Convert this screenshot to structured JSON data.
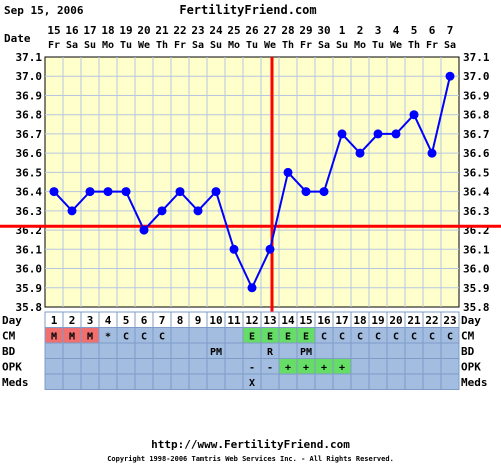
{
  "header": {
    "date_text": "Sep 15, 2006",
    "site": "FertilityFriend.com"
  },
  "colors": {
    "plot_bg": "#ffffcc",
    "grid": "#b6c7e0",
    "line": "#0000ff",
    "coverline": "#ff0000",
    "ovulation": "#ff0000",
    "row_bg": "#a3bde0",
    "menses": "#f07070",
    "egg_white": "#66dd66",
    "opk_positive": "#66dd66"
  },
  "chart_data": {
    "type": "line",
    "dates": [
      "15",
      "16",
      "17",
      "18",
      "19",
      "20",
      "21",
      "22",
      "23",
      "24",
      "25",
      "26",
      "27",
      "28",
      "29",
      "30",
      "1",
      "2",
      "3",
      "4",
      "5",
      "6",
      "7"
    ],
    "weekdays": [
      "Fr",
      "Sa",
      "Su",
      "Mo",
      "Tu",
      "We",
      "Th",
      "Fr",
      "Sa",
      "Su",
      "Mo",
      "Tu",
      "We",
      "Th",
      "Fr",
      "Sa",
      "Su",
      "Mo",
      "Tu",
      "We",
      "Th",
      "Fr",
      "Sa"
    ],
    "days": [
      1,
      2,
      3,
      4,
      5,
      6,
      7,
      8,
      9,
      10,
      11,
      12,
      13,
      14,
      15,
      16,
      17,
      18,
      19,
      20,
      21,
      22,
      23
    ],
    "temps": [
      36.4,
      36.3,
      36.4,
      36.4,
      36.4,
      36.2,
      36.3,
      36.4,
      36.3,
      36.4,
      36.1,
      35.9,
      36.1,
      36.5,
      36.4,
      36.4,
      36.7,
      36.6,
      36.7,
      36.7,
      36.8,
      36.6,
      37.0
    ],
    "y_ticks": [
      "37.1",
      "37.0",
      "36.9",
      "36.8",
      "36.7",
      "36.6",
      "36.5",
      "36.4",
      "36.3",
      "36.2",
      "36.1",
      "36.0",
      "35.9",
      "35.8"
    ],
    "ylim": [
      35.8,
      37.1
    ],
    "coverline": 36.22,
    "ovulation_day": 13,
    "row_labels": {
      "day": "Day",
      "cm": "CM",
      "bd": "BD",
      "opk": "OPK",
      "meds": "Meds",
      "date": "Date"
    },
    "cm": [
      "M",
      "M",
      "M",
      "*",
      "C",
      "C",
      "C",
      "",
      "",
      "",
      "",
      "E",
      "E",
      "E",
      "E",
      "C",
      "C",
      "C",
      "C",
      "C",
      "C",
      "C",
      "C"
    ],
    "bd": [
      "",
      "",
      "",
      "",
      "",
      "",
      "",
      "",
      "",
      "PM",
      "",
      "",
      "R",
      "",
      "PM",
      "",
      "",
      "",
      "",
      "",
      "",
      "",
      ""
    ],
    "opk": [
      "",
      "",
      "",
      "",
      "",
      "",
      "",
      "",
      "",
      "",
      "",
      "-",
      "-",
      "+",
      "+",
      "+",
      "+",
      "",
      "",
      "",
      "",
      "",
      ""
    ],
    "meds": [
      "",
      "",
      "",
      "",
      "",
      "",
      "",
      "",
      "",
      "",
      "",
      "X",
      "",
      "",
      "",
      "",
      "",
      "",
      "",
      "",
      "",
      "",
      ""
    ]
  },
  "footer": {
    "url": "http://www.FertilityFriend.com",
    "copyright": "Copyright 1998-2006 Tamtris Web Services Inc. - All Rights Reserved."
  }
}
